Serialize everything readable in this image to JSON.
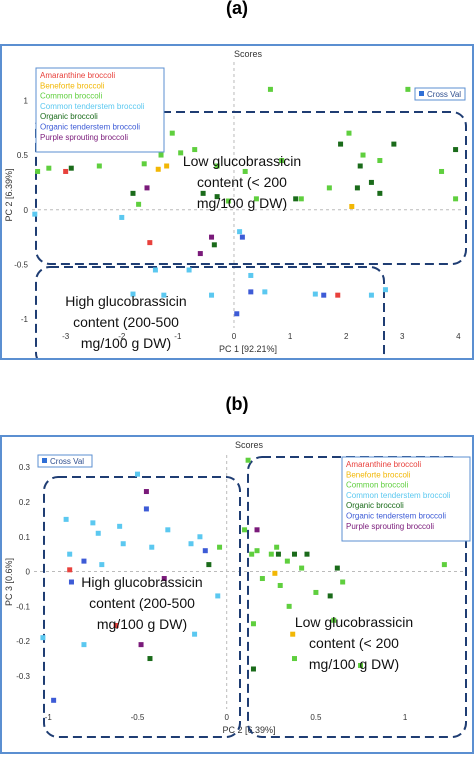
{
  "panels": [
    {
      "letter": "(a)"
    },
    {
      "letter": "(b)"
    }
  ],
  "colors": {
    "frame": "#5b8fd1",
    "amaranthine": "#e8413c",
    "beneforte": "#f2b705",
    "common": "#5fcf3e",
    "common_tenderstem": "#5bc8f0",
    "organic": "#1a6b1a",
    "organic_tenderstem": "#3d5bd6",
    "purple_sprouting": "#7a1a7a",
    "cross_val": "#2f6fd6",
    "box": "#1f3d73"
  },
  "chart_data": [
    {
      "type": "scatter",
      "title": "Scores",
      "xlabel": "PC 1 [92.21%]",
      "ylabel": "PC 2 [6.39%]",
      "xlim": [
        -3.6,
        4.1
      ],
      "ylim": [
        -1.08,
        1.35
      ],
      "xticks": [
        "-3",
        "-2",
        "-1",
        "0",
        "1",
        "2",
        "3",
        "4"
      ],
      "yticks": [
        "-1",
        "-0.5",
        "0",
        "0.5",
        "1"
      ],
      "legend_position": "top-left",
      "cross_val_label": "Cross Val",
      "annotations": [
        {
          "lines": [
            "Low glucobrassicin",
            "content (< 200",
            "mg/100 g DW)"
          ]
        },
        {
          "lines": [
            "High glucobrassicin",
            "content (200-500",
            "mg/100 g DW)"
          ]
        }
      ],
      "series": [
        {
          "name": "Amaranthine broccoli",
          "color_key": "amaranthine",
          "points": [
            [
              -3.0,
              0.35
            ],
            [
              -1.5,
              -0.3
            ],
            [
              1.85,
              -0.78
            ]
          ]
        },
        {
          "name": "Beneforte broccoli",
          "color_key": "beneforte",
          "points": [
            [
              -1.35,
              0.37
            ],
            [
              -1.2,
              0.4
            ],
            [
              2.1,
              0.03
            ]
          ]
        },
        {
          "name": "Common broccoli",
          "color_key": "common",
          "points": [
            [
              -3.5,
              0.35
            ],
            [
              -3.3,
              0.38
            ],
            [
              -2.4,
              0.4
            ],
            [
              -2.2,
              0.6
            ],
            [
              -1.7,
              0.05
            ],
            [
              -1.6,
              0.42
            ],
            [
              -1.3,
              0.5
            ],
            [
              -1.1,
              0.7
            ],
            [
              -0.95,
              0.52
            ],
            [
              -0.7,
              0.55
            ],
            [
              -0.3,
              0.4
            ],
            [
              -0.1,
              0.08
            ],
            [
              0.2,
              0.35
            ],
            [
              0.4,
              0.1
            ],
            [
              0.65,
              1.1
            ],
            [
              0.85,
              0.45
            ],
            [
              1.2,
              0.1
            ],
            [
              1.7,
              0.2
            ],
            [
              2.05,
              0.7
            ],
            [
              2.3,
              0.5
            ],
            [
              2.6,
              0.45
            ],
            [
              3.1,
              1.1
            ],
            [
              3.7,
              0.35
            ],
            [
              3.95,
              0.1
            ]
          ]
        },
        {
          "name": "Common tenderstem broccoli",
          "color_key": "common_tenderstem",
          "points": [
            [
              -3.55,
              -0.04
            ],
            [
              -2.0,
              -0.07
            ],
            [
              -1.8,
              -0.77
            ],
            [
              -1.4,
              -0.55
            ],
            [
              -1.25,
              -0.78
            ],
            [
              -0.8,
              -0.55
            ],
            [
              -0.4,
              -0.78
            ],
            [
              0.1,
              -0.2
            ],
            [
              0.3,
              -0.6
            ],
            [
              0.55,
              -0.75
            ],
            [
              1.45,
              -0.77
            ],
            [
              2.45,
              -0.78
            ],
            [
              2.7,
              -0.73
            ]
          ]
        },
        {
          "name": "Organic broccoli",
          "color_key": "organic",
          "points": [
            [
              -2.9,
              0.38
            ],
            [
              -1.8,
              0.15
            ],
            [
              -0.55,
              0.15
            ],
            [
              -0.35,
              -0.32
            ],
            [
              -0.3,
              0.12
            ],
            [
              1.1,
              0.1
            ],
            [
              1.9,
              0.6
            ],
            [
              2.2,
              0.2
            ],
            [
              2.25,
              0.4
            ],
            [
              2.45,
              0.25
            ],
            [
              2.6,
              0.15
            ],
            [
              2.85,
              0.6
            ],
            [
              3.95,
              0.55
            ]
          ]
        },
        {
          "name": "Organic tenderstem broccoli",
          "color_key": "organic_tenderstem",
          "points": [
            [
              0.15,
              -0.25
            ],
            [
              0.3,
              -0.75
            ],
            [
              0.05,
              -0.95
            ],
            [
              1.6,
              -0.78
            ]
          ]
        },
        {
          "name": "Purple sprouting broccoli",
          "color_key": "purple_sprouting",
          "points": [
            [
              -1.55,
              0.2
            ],
            [
              -0.4,
              -0.25
            ],
            [
              -0.6,
              -0.4
            ]
          ]
        }
      ]
    },
    {
      "type": "scatter",
      "title": "Scores",
      "xlabel": "PC 2 [6.39%]",
      "ylabel": "PC 3 [0.6%]",
      "xlim": [
        -1.08,
        1.33
      ],
      "ylim": [
        -0.395,
        0.335
      ],
      "xticks": [
        "-1",
        "-0.5",
        "0",
        "0.5",
        "1"
      ],
      "yticks": [
        "-0.3",
        "-0.2",
        "-0.1",
        "0",
        "0.1",
        "0.2",
        "0.3"
      ],
      "legend_position": "top-right",
      "cross_val_label": "Cross Val",
      "annotations": [
        {
          "lines": [
            "High glucobrassicin",
            "content (200-500",
            "mg/100 g DW)"
          ]
        },
        {
          "lines": [
            "Low glucobrassicin",
            "content (< 200",
            "mg/100 g DW)"
          ]
        }
      ],
      "series": [
        {
          "name": "Amaranthine broccoli",
          "color_key": "amaranthine",
          "points": [
            [
              -0.88,
              0.005
            ],
            [
              -0.62,
              -0.155
            ]
          ]
        },
        {
          "name": "Beneforte broccoli",
          "color_key": "beneforte",
          "points": [
            [
              0.27,
              -0.005
            ],
            [
              0.37,
              -0.18
            ]
          ]
        },
        {
          "name": "Common broccoli",
          "color_key": "common",
          "points": [
            [
              -0.04,
              0.07
            ],
            [
              0.1,
              0.12
            ],
            [
              0.12,
              0.32
            ],
            [
              0.14,
              0.05
            ],
            [
              0.15,
              -0.15
            ],
            [
              0.17,
              0.06
            ],
            [
              0.2,
              -0.02
            ],
            [
              0.25,
              0.05
            ],
            [
              0.28,
              0.07
            ],
            [
              0.3,
              -0.04
            ],
            [
              0.34,
              0.03
            ],
            [
              0.35,
              -0.1
            ],
            [
              0.38,
              -0.25
            ],
            [
              0.42,
              0.01
            ],
            [
              0.5,
              -0.06
            ],
            [
              0.6,
              -0.14
            ],
            [
              0.65,
              -0.03
            ],
            [
              0.75,
              -0.27
            ],
            [
              1.22,
              0.02
            ]
          ]
        },
        {
          "name": "Common tenderstem broccoli",
          "color_key": "common_tenderstem",
          "points": [
            [
              -1.03,
              -0.19
            ],
            [
              -0.9,
              0.15
            ],
            [
              -0.88,
              0.05
            ],
            [
              -0.8,
              -0.21
            ],
            [
              -0.75,
              0.14
            ],
            [
              -0.72,
              0.11
            ],
            [
              -0.7,
              0.02
            ],
            [
              -0.6,
              0.13
            ],
            [
              -0.58,
              0.08
            ],
            [
              -0.5,
              0.28
            ],
            [
              -0.42,
              0.07
            ],
            [
              -0.33,
              0.12
            ],
            [
              -0.2,
              0.08
            ],
            [
              -0.18,
              -0.18
            ],
            [
              -0.15,
              0.1
            ],
            [
              -0.05,
              -0.07
            ]
          ]
        },
        {
          "name": "Organic broccoli",
          "color_key": "organic",
          "points": [
            [
              -0.43,
              -0.25
            ],
            [
              -0.1,
              0.02
            ],
            [
              0.15,
              -0.28
            ],
            [
              0.29,
              0.05
            ],
            [
              0.38,
              0.05
            ],
            [
              0.45,
              0.05
            ],
            [
              0.58,
              -0.07
            ],
            [
              0.62,
              0.01
            ]
          ]
        },
        {
          "name": "Organic tenderstem broccoli",
          "color_key": "organic_tenderstem",
          "points": [
            [
              -0.87,
              -0.03
            ],
            [
              -0.8,
              0.03
            ],
            [
              -0.45,
              0.18
            ],
            [
              -0.12,
              0.06
            ],
            [
              -0.97,
              -0.37
            ]
          ]
        },
        {
          "name": "Purple sprouting broccoli",
          "color_key": "purple_sprouting",
          "points": [
            [
              -0.45,
              0.23
            ],
            [
              -0.35,
              -0.02
            ],
            [
              -0.48,
              -0.21
            ],
            [
              0.17,
              0.12
            ]
          ]
        }
      ]
    }
  ]
}
